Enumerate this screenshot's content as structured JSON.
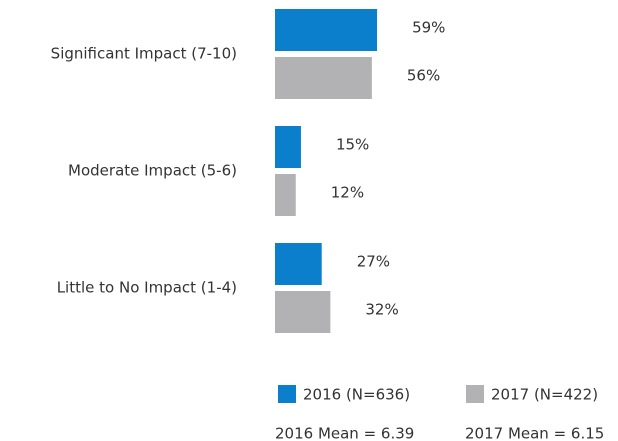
{
  "chart_data": {
    "type": "bar",
    "orientation": "horizontal",
    "categories": [
      "Significant Impact (7-10)",
      "Moderate Impact (5-6)",
      "Little to No Impact (1-4)"
    ],
    "series": [
      {
        "name": "2016 (N=636)",
        "color": "#0b7fcc",
        "values": [
          59,
          15,
          27
        ],
        "value_labels": [
          "59%",
          "15%",
          "27%"
        ]
      },
      {
        "name": "2017 (N=422)",
        "color": "#b2b2b4",
        "values": [
          56,
          12,
          32
        ],
        "value_labels": [
          "56%",
          "12%",
          "32%"
        ]
      }
    ],
    "annotations": [
      "2016 Mean = 6.39",
      "2017 Mean = 6.15"
    ],
    "legend": "bottom"
  }
}
